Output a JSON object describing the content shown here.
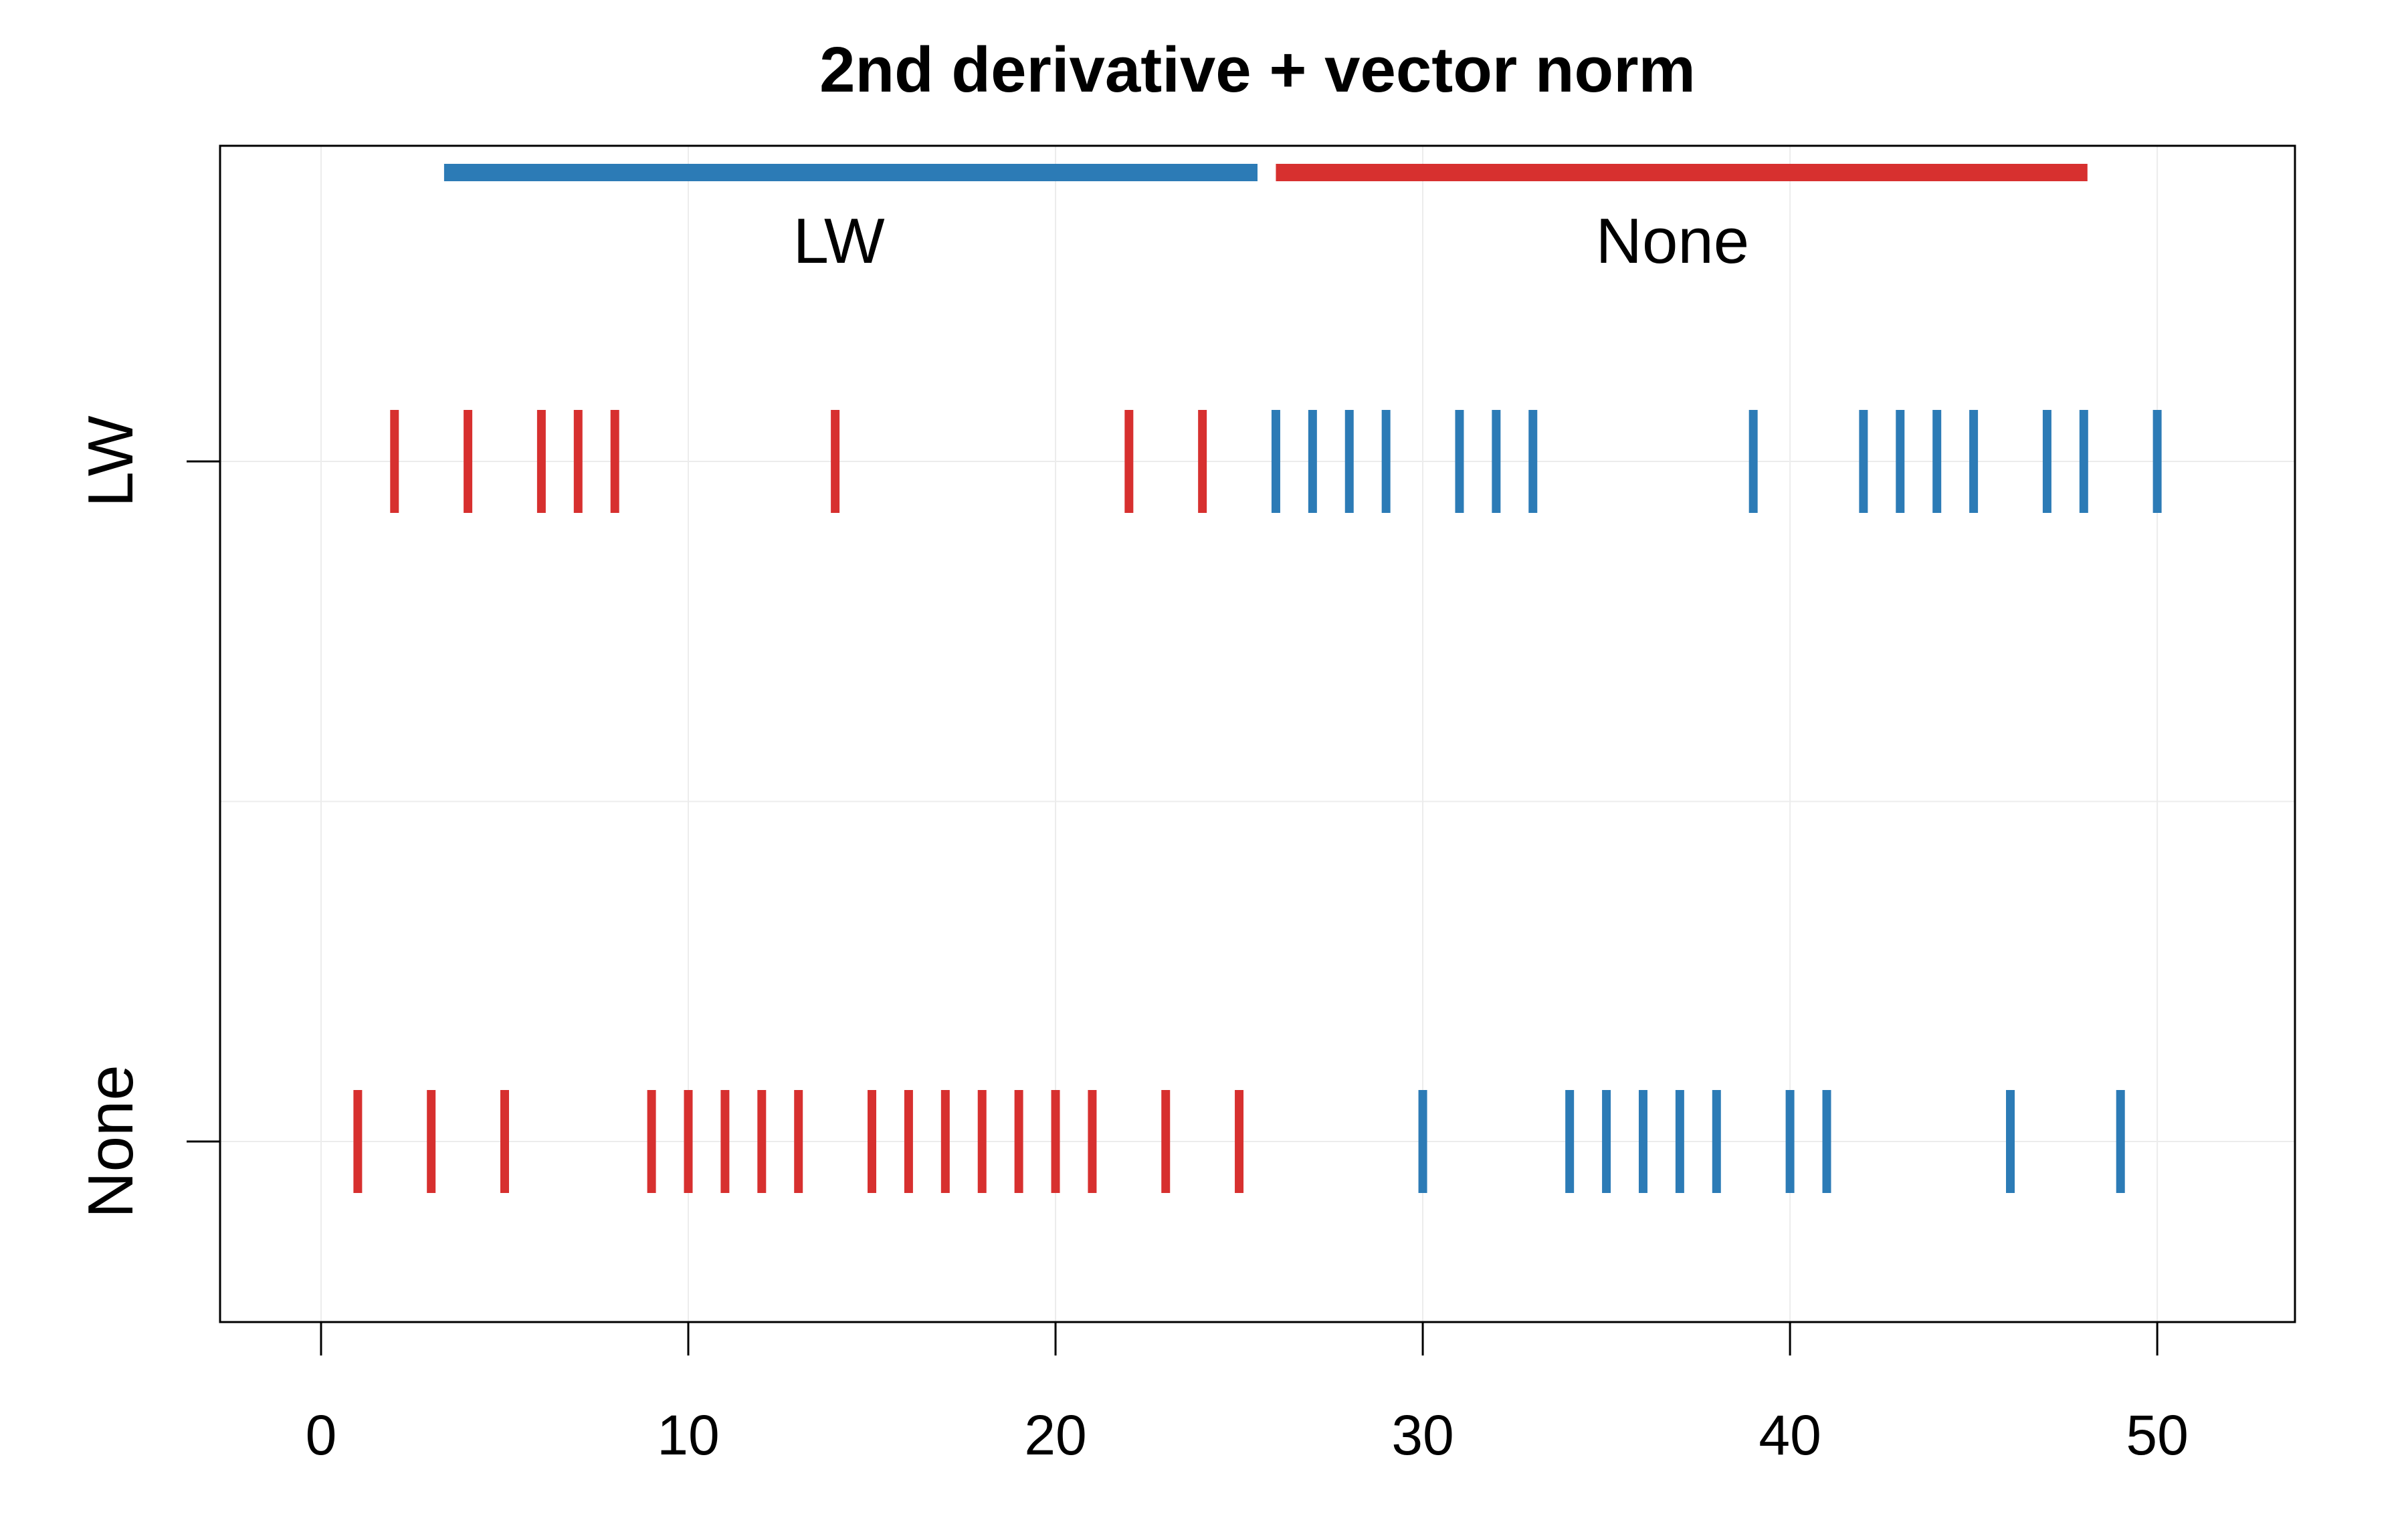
{
  "chart_data": {
    "type": "strip",
    "title": "2nd derivative + vector norm",
    "xlabel": "",
    "ylabel": "",
    "xlim": [
      -2.75,
      53.75
    ],
    "x_ticks": [
      0,
      10,
      20,
      30,
      40,
      50
    ],
    "groups": [
      "LW",
      "None"
    ],
    "colors": {
      "LW": "#2c7bb6",
      "None": "#d7302f"
    },
    "legend": [
      {
        "label": "LW",
        "color": "#2c7bb6"
      },
      {
        "label": "None",
        "color": "#d7302f"
      }
    ],
    "series": [
      {
        "name": "LW",
        "points": [
          {
            "x": 2,
            "color": "None"
          },
          {
            "x": 4,
            "color": "None"
          },
          {
            "x": 6,
            "color": "None"
          },
          {
            "x": 7,
            "color": "None"
          },
          {
            "x": 8,
            "color": "None"
          },
          {
            "x": 14,
            "color": "None"
          },
          {
            "x": 22,
            "color": "None"
          },
          {
            "x": 24,
            "color": "None"
          },
          {
            "x": 26,
            "color": "LW"
          },
          {
            "x": 27,
            "color": "LW"
          },
          {
            "x": 28,
            "color": "LW"
          },
          {
            "x": 29,
            "color": "LW"
          },
          {
            "x": 31,
            "color": "LW"
          },
          {
            "x": 32,
            "color": "LW"
          },
          {
            "x": 33,
            "color": "LW"
          },
          {
            "x": 39,
            "color": "LW"
          },
          {
            "x": 42,
            "color": "LW"
          },
          {
            "x": 43,
            "color": "LW"
          },
          {
            "x": 44,
            "color": "LW"
          },
          {
            "x": 45,
            "color": "LW"
          },
          {
            "x": 47,
            "color": "LW"
          },
          {
            "x": 48,
            "color": "LW"
          },
          {
            "x": 50,
            "color": "LW"
          }
        ]
      },
      {
        "name": "None",
        "points": [
          {
            "x": 1,
            "color": "None"
          },
          {
            "x": 3,
            "color": "None"
          },
          {
            "x": 5,
            "color": "None"
          },
          {
            "x": 9,
            "color": "None"
          },
          {
            "x": 10,
            "color": "None"
          },
          {
            "x": 11,
            "color": "None"
          },
          {
            "x": 12,
            "color": "None"
          },
          {
            "x": 13,
            "color": "None"
          },
          {
            "x": 15,
            "color": "None"
          },
          {
            "x": 16,
            "color": "None"
          },
          {
            "x": 17,
            "color": "None"
          },
          {
            "x": 18,
            "color": "None"
          },
          {
            "x": 19,
            "color": "None"
          },
          {
            "x": 20,
            "color": "None"
          },
          {
            "x": 21,
            "color": "None"
          },
          {
            "x": 23,
            "color": "None"
          },
          {
            "x": 25,
            "color": "None"
          },
          {
            "x": 30,
            "color": "LW"
          },
          {
            "x": 34,
            "color": "LW"
          },
          {
            "x": 35,
            "color": "LW"
          },
          {
            "x": 36,
            "color": "LW"
          },
          {
            "x": 37,
            "color": "LW"
          },
          {
            "x": 38,
            "color": "LW"
          },
          {
            "x": 40,
            "color": "LW"
          },
          {
            "x": 41,
            "color": "LW"
          },
          {
            "x": 46,
            "color": "LW"
          },
          {
            "x": 49,
            "color": "LW"
          }
        ]
      }
    ]
  }
}
